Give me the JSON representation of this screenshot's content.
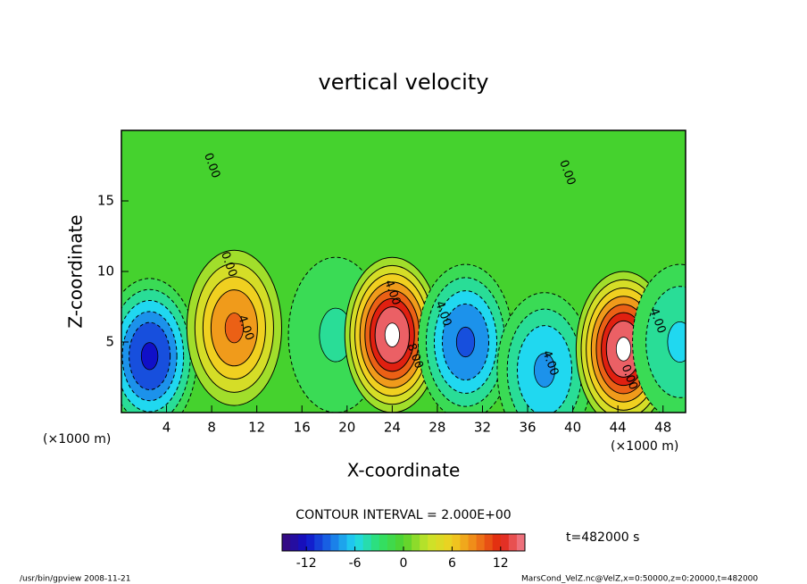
{
  "chart_data": {
    "type": "contour",
    "title": "vertical velocity",
    "x_label": "X-coordinate",
    "y_label": "Z-coordinate",
    "x_unit": "(×1000 m)",
    "y_unit": "(×1000 m)",
    "xlim": [
      0,
      50
    ],
    "ylim": [
      0,
      20
    ],
    "xticks": [
      4,
      8,
      12,
      16,
      20,
      24,
      28,
      32,
      36,
      40,
      44,
      48
    ],
    "yticks": [
      5,
      10,
      15
    ],
    "background_color": "#45d22e",
    "features": [
      {
        "x": 2.5,
        "z": 4,
        "value": -12
      },
      {
        "x": 10,
        "z": 6,
        "value": 10
      },
      {
        "x": 19,
        "z": 5.5,
        "value": -4
      },
      {
        "x": 24,
        "z": 5.5,
        "value": 16
      },
      {
        "x": 30.5,
        "z": 5,
        "value": -10
      },
      {
        "x": 37.5,
        "z": 3,
        "value": -8
      },
      {
        "x": 44.5,
        "z": 4.5,
        "value": 16
      },
      {
        "x": 49.5,
        "z": 5,
        "value": -6
      }
    ],
    "contour_labels": [
      {
        "text": "4.00",
        "x": 11,
        "z": 6
      },
      {
        "text": "4.00",
        "x": 24,
        "z": 8.5
      },
      {
        "text": "8.00",
        "x": 26,
        "z": 4
      },
      {
        "text": "4.00",
        "x": 28.5,
        "z": 7
      },
      {
        "text": "4.00",
        "x": 38,
        "z": 3.5
      },
      {
        "text": "0.00",
        "x": 9.5,
        "z": 10.5
      },
      {
        "text": "0.00",
        "x": 8,
        "z": 17.5
      },
      {
        "text": "0.00",
        "x": 39.5,
        "z": 17
      },
      {
        "text": "4.00",
        "x": 47.5,
        "z": 6.5
      },
      {
        "text": "0.00",
        "x": 45,
        "z": 2.5
      }
    ],
    "contour_interval": "CONTOUR INTERVAL = 2.000E+00",
    "clim": [
      -15,
      15
    ],
    "cticks": [
      -12,
      -6,
      0,
      6,
      12
    ],
    "colormap": [
      "#3a0a78",
      "#1010c8",
      "#1a6fe8",
      "#20d8f0",
      "#2ee06a",
      "#52d22c",
      "#c8e42a",
      "#f0d020",
      "#f08018",
      "#e02010",
      "#f08090"
    ],
    "time_label": "t=482000 s",
    "footer_left": "/usr/bin/gpview  2008-11-21",
    "footer_right": "MarsCond_VelZ.nc@VelZ,x=0:50000,z=0:20000,t=482000"
  }
}
